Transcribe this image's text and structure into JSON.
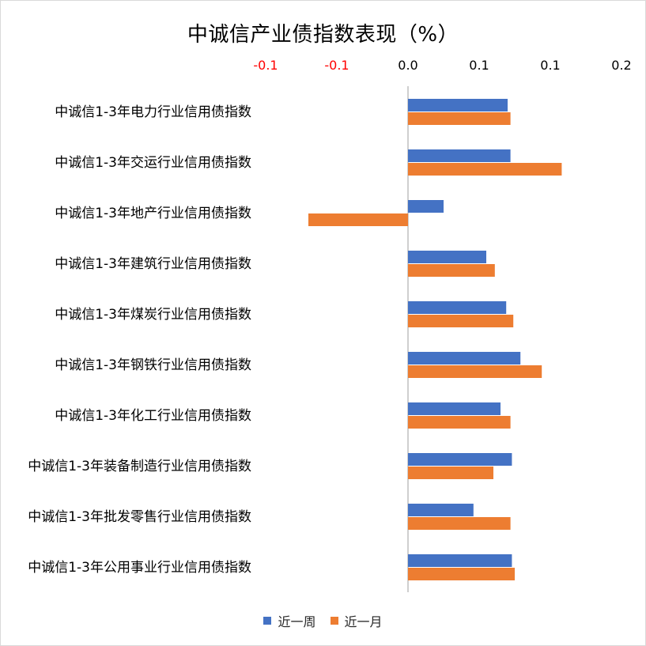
{
  "colors": {
    "week": "#4472C4",
    "month": "#ED7D31",
    "negative_tick": "#FF0000",
    "tick": "#000000",
    "axis": "#BFBFBF"
  },
  "chart_data": {
    "type": "bar",
    "orientation": "horizontal",
    "title": "中诚信产业债指数表现（%）",
    "xlim": [
      -0.14,
      0.2
    ],
    "x_tick_labels": [
      "-0.1",
      "-0.1",
      "0.0",
      "0.1",
      "0.1",
      "0.2"
    ],
    "x_tick_values": [
      -0.1,
      -0.05,
      0.0,
      0.05,
      0.1,
      0.15
    ],
    "x_tick_position": "top",
    "grid": false,
    "legend_position": "bottom",
    "categories": [
      "中诚信1-3年电力行业信用债指数",
      "中诚信1-3年交运行业信用债指数",
      "中诚信1-3年地产行业信用债指数",
      "中诚信1-3年建筑行业信用债指数",
      "中诚信1-3年煤炭行业信用债指数",
      "中诚信1-3年钢铁行业信用债指数",
      "中诚信1-3年化工行业信用债指数",
      "中诚信1-3年装备制造行业信用债指数",
      "中诚信1-3年批发零售行业信用债指数",
      "中诚信1-3年公用事业行业信用债指数"
    ],
    "series": [
      {
        "name": "近一周",
        "values": [
          0.07,
          0.072,
          0.025,
          0.055,
          0.069,
          0.079,
          0.065,
          0.073,
          0.046,
          0.073
        ]
      },
      {
        "name": "近一月",
        "values": [
          0.072,
          0.108,
          -0.07,
          0.061,
          0.074,
          0.094,
          0.072,
          0.06,
          0.072,
          0.075
        ]
      }
    ]
  }
}
